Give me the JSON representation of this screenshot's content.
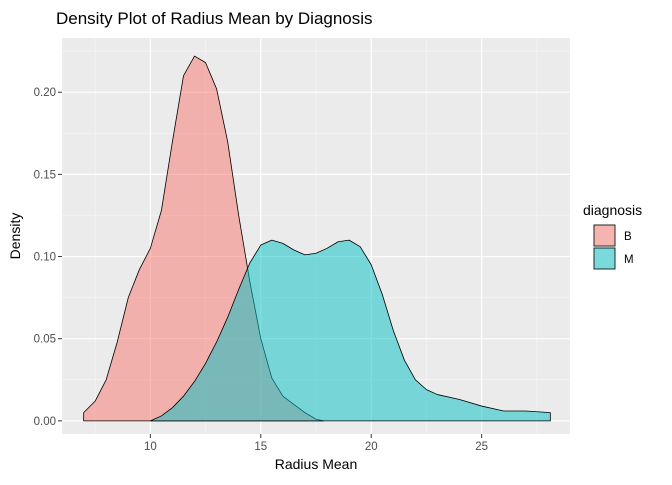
{
  "chart_data": {
    "type": "area",
    "title": "Density Plot of Radius Mean by Diagnosis",
    "xlabel": "Radius Mean",
    "ylabel": "Density",
    "xlim": [
      6.0,
      29.0
    ],
    "ylim": [
      -0.008,
      0.233
    ],
    "x_ticks": [
      10,
      15,
      20,
      25
    ],
    "y_ticks": [
      0.0,
      0.05,
      0.1,
      0.15,
      0.2
    ],
    "y_tick_labels": [
      "0.00",
      "0.05",
      "0.10",
      "0.15",
      "0.20"
    ],
    "x_tick_labels": [
      "10",
      "15",
      "20",
      "25"
    ],
    "grid": true,
    "legend": {
      "title": "diagnosis",
      "position": "right"
    },
    "series": [
      {
        "name": "B",
        "color": "#F8766D",
        "points": [
          [
            6.98,
            0.005
          ],
          [
            7.5,
            0.012
          ],
          [
            8.0,
            0.025
          ],
          [
            8.5,
            0.048
          ],
          [
            9.0,
            0.075
          ],
          [
            9.5,
            0.092
          ],
          [
            10.0,
            0.105
          ],
          [
            10.5,
            0.128
          ],
          [
            11.0,
            0.17
          ],
          [
            11.5,
            0.21
          ],
          [
            12.0,
            0.222
          ],
          [
            12.5,
            0.218
          ],
          [
            13.0,
            0.202
          ],
          [
            13.5,
            0.17
          ],
          [
            14.0,
            0.125
          ],
          [
            14.5,
            0.085
          ],
          [
            15.0,
            0.05
          ],
          [
            15.5,
            0.026
          ],
          [
            16.0,
            0.015
          ],
          [
            16.5,
            0.01
          ],
          [
            17.0,
            0.005
          ],
          [
            17.5,
            0.001
          ],
          [
            17.85,
            0.0
          ]
        ]
      },
      {
        "name": "M",
        "color": "#00BFC4",
        "points": [
          [
            10.0,
            0.0
          ],
          [
            10.5,
            0.003
          ],
          [
            11.0,
            0.008
          ],
          [
            11.5,
            0.015
          ],
          [
            12.0,
            0.024
          ],
          [
            12.5,
            0.035
          ],
          [
            13.0,
            0.048
          ],
          [
            13.5,
            0.063
          ],
          [
            14.0,
            0.08
          ],
          [
            14.5,
            0.096
          ],
          [
            15.0,
            0.107
          ],
          [
            15.5,
            0.11
          ],
          [
            16.0,
            0.108
          ],
          [
            16.5,
            0.104
          ],
          [
            17.0,
            0.101
          ],
          [
            17.5,
            0.102
          ],
          [
            18.0,
            0.105
          ],
          [
            18.5,
            0.109
          ],
          [
            19.0,
            0.11
          ],
          [
            19.5,
            0.106
          ],
          [
            20.0,
            0.095
          ],
          [
            20.5,
            0.077
          ],
          [
            21.0,
            0.055
          ],
          [
            21.5,
            0.037
          ],
          [
            22.0,
            0.025
          ],
          [
            22.5,
            0.019
          ],
          [
            23.0,
            0.016
          ],
          [
            24.0,
            0.013
          ],
          [
            25.0,
            0.009
          ],
          [
            26.0,
            0.006
          ],
          [
            27.0,
            0.006
          ],
          [
            28.11,
            0.005
          ]
        ]
      }
    ]
  }
}
